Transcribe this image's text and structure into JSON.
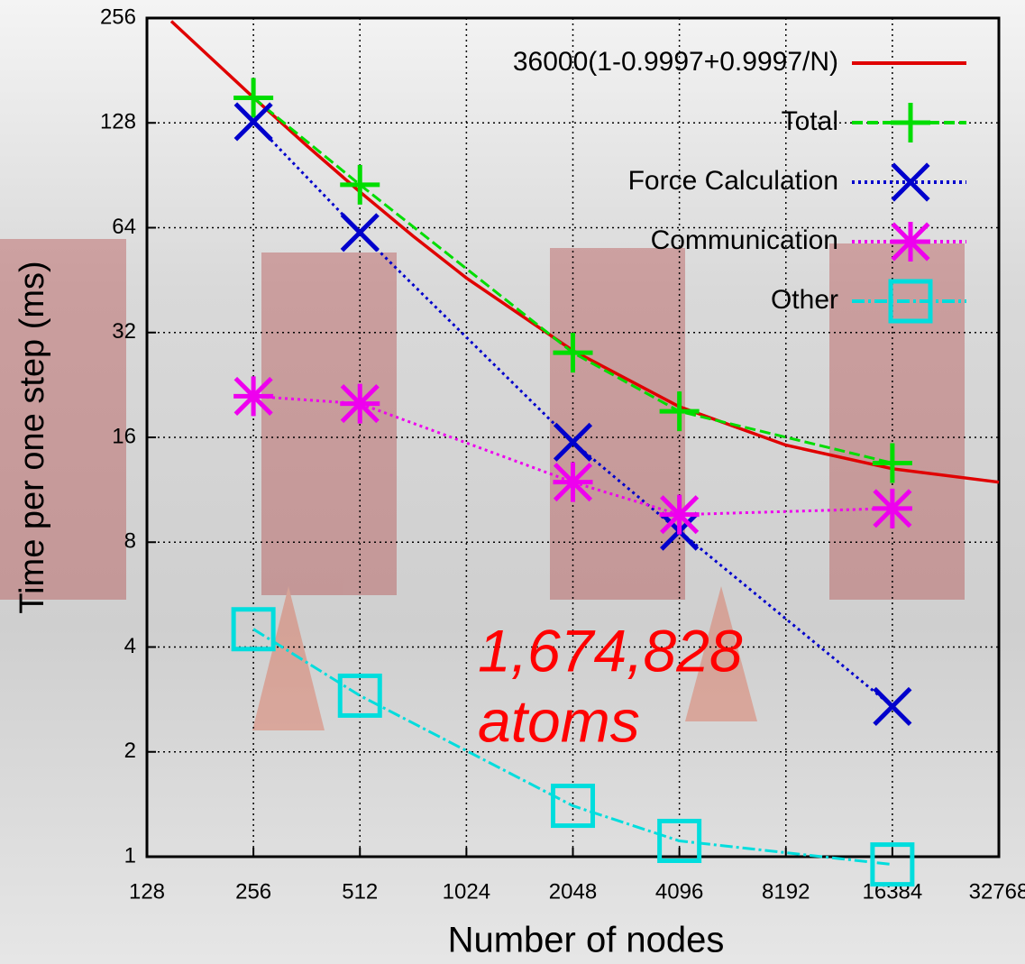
{
  "chart_data": {
    "type": "line",
    "xlabel": "Number of nodes",
    "ylabel": "Time per one step (ms)",
    "xscale": "log",
    "yscale": "log",
    "log_base": 2,
    "xlim": [
      128,
      32768
    ],
    "ylim": [
      1,
      256
    ],
    "xticks": [
      128,
      256,
      512,
      1024,
      2048,
      4096,
      8192,
      16384,
      32768
    ],
    "yticks": [
      1,
      2,
      4,
      8,
      16,
      32,
      64,
      128,
      256
    ],
    "grid": true,
    "legend": "upper right",
    "annotation": [
      "1,674,828",
      "atoms"
    ],
    "annotation_color": "#ff0000",
    "series": [
      {
        "name": "36000(1-0.9997+0.9997/N)",
        "color": "#e00000",
        "marker": "none",
        "dash": "solid",
        "x": [
          150,
          256,
          362,
          512,
          724,
          1024,
          2048,
          4096,
          8192,
          16384,
          32768
        ],
        "values": [
          250.7,
          151.4,
          110.2,
          81.1,
          60.5,
          45.9,
          28.4,
          19.6,
          15.2,
          13.0,
          11.9
        ]
      },
      {
        "name": "Total",
        "color": "#00dd00",
        "marker": "plus",
        "dash": "dash",
        "x": [
          256,
          512,
          2048,
          4096,
          16384
        ],
        "values": [
          151,
          85,
          28,
          19,
          13.5
        ]
      },
      {
        "name": "Force Calculation",
        "color": "#0000cc",
        "marker": "cross",
        "dash": "dot",
        "x": [
          256,
          512,
          2048,
          4096,
          16384
        ],
        "values": [
          129,
          62,
          15.5,
          8.6,
          2.7
        ]
      },
      {
        "name": "Communication",
        "color": "#ee00ee",
        "marker": "star",
        "dash": "dot",
        "x": [
          256,
          512,
          2048,
          4096,
          16384
        ],
        "values": [
          21,
          20,
          11.9,
          9.6,
          10
        ]
      },
      {
        "name": "Other",
        "color": "#00dddd",
        "marker": "square",
        "dash": "dashdot",
        "x": [
          256,
          512,
          2048,
          4096,
          16384
        ],
        "values": [
          4.5,
          2.9,
          1.4,
          1.11,
          0.95
        ]
      }
    ]
  }
}
